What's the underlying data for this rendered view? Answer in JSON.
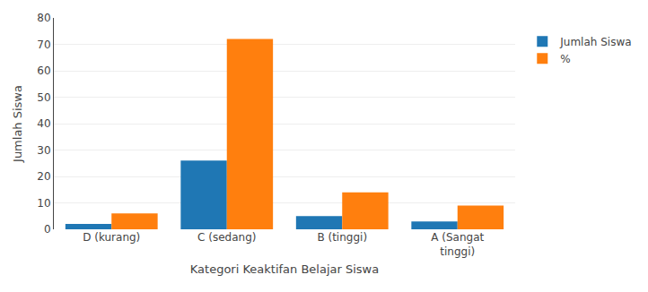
{
  "chart_data": {
    "type": "bar",
    "categories": [
      "D (kurang)",
      "C (sedang)",
      "B (tinggi)",
      "A (Sangat\ntinggi)"
    ],
    "series": [
      {
        "name": "Jumlah Siswa",
        "values": [
          2,
          26,
          5,
          3
        ]
      },
      {
        "name": "%",
        "values": [
          6,
          72,
          14,
          9
        ]
      }
    ],
    "xlabel": "Kategori Keaktifan Belajar Siswa",
    "ylabel": "Jumlah Siswa",
    "ylim": [
      0,
      80
    ],
    "yticks": [
      0,
      10,
      20,
      30,
      40,
      50,
      60,
      70,
      80
    ],
    "grid": true,
    "legend": "right"
  }
}
